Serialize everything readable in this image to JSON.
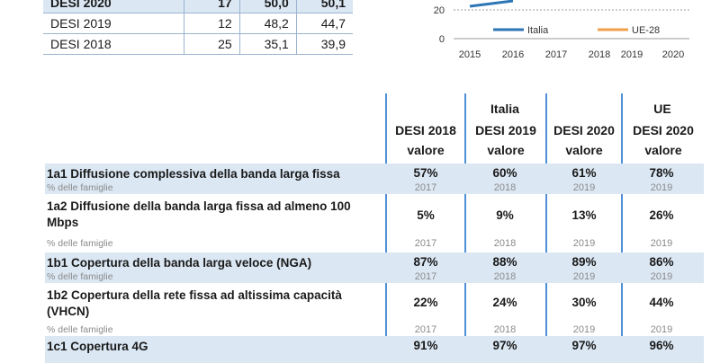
{
  "score_table": {
    "rows": [
      {
        "label": "DESI 2020",
        "rank": "17",
        "ita": "50,0",
        "eu": "50,1"
      },
      {
        "label": "DESI 2019",
        "rank": "12",
        "ita": "48,2",
        "eu": "44,7"
      },
      {
        "label": "DESI 2018",
        "rank": "25",
        "ita": "35,1",
        "eu": "39,9"
      }
    ]
  },
  "mini_chart": {
    "y_ticks": [
      "20",
      "0"
    ],
    "x_ticks": [
      "2015",
      "2016",
      "2017",
      "2018",
      "2019",
      "2020"
    ],
    "legend": [
      "Italia",
      "UE-28"
    ],
    "colors": {
      "italia": "#2e75b6",
      "ue": "#f0a04b"
    }
  },
  "main_table": {
    "group_italy": "Italia",
    "group_eu": "UE",
    "columns": [
      {
        "top": "DESI 2018",
        "bottom": "valore"
      },
      {
        "top": "DESI 2019",
        "bottom": "valore"
      },
      {
        "top": "DESI 2020",
        "bottom": "valore"
      },
      {
        "top": "DESI 2020",
        "bottom": "valore"
      }
    ],
    "rows": [
      {
        "title": "1a1 Diffusione complessiva della banda larga fissa",
        "sub": "% delle famiglie",
        "values": [
          "57%",
          "60%",
          "61%",
          "78%"
        ],
        "years": [
          "2017",
          "2018",
          "2019",
          "2019"
        ]
      },
      {
        "title": "1a2 Diffusione della banda larga fissa ad almeno 100 Mbps",
        "sub": "% delle famiglie",
        "values": [
          "5%",
          "9%",
          "13%",
          "26%"
        ],
        "years": [
          "2017",
          "2018",
          "2019",
          "2019"
        ]
      },
      {
        "title": "1b1 Copertura della banda larga veloce (NGA)",
        "sub": "% delle famiglie",
        "values": [
          "87%",
          "88%",
          "89%",
          "86%"
        ],
        "years": [
          "2017",
          "2018",
          "2019",
          "2019"
        ]
      },
      {
        "title": "1b2 Copertura della rete fissa ad altissima capacità (VHCN)",
        "sub": "% delle famiglie",
        "values": [
          "22%",
          "24%",
          "30%",
          "44%"
        ],
        "years": [
          "2017",
          "2018",
          "2019",
          "2019"
        ]
      },
      {
        "title": "1c1 Copertura 4G",
        "sub": "",
        "values": [
          "91%",
          "97%",
          "97%",
          "96%"
        ],
        "years": [
          "",
          "",
          "",
          ""
        ]
      }
    ]
  }
}
